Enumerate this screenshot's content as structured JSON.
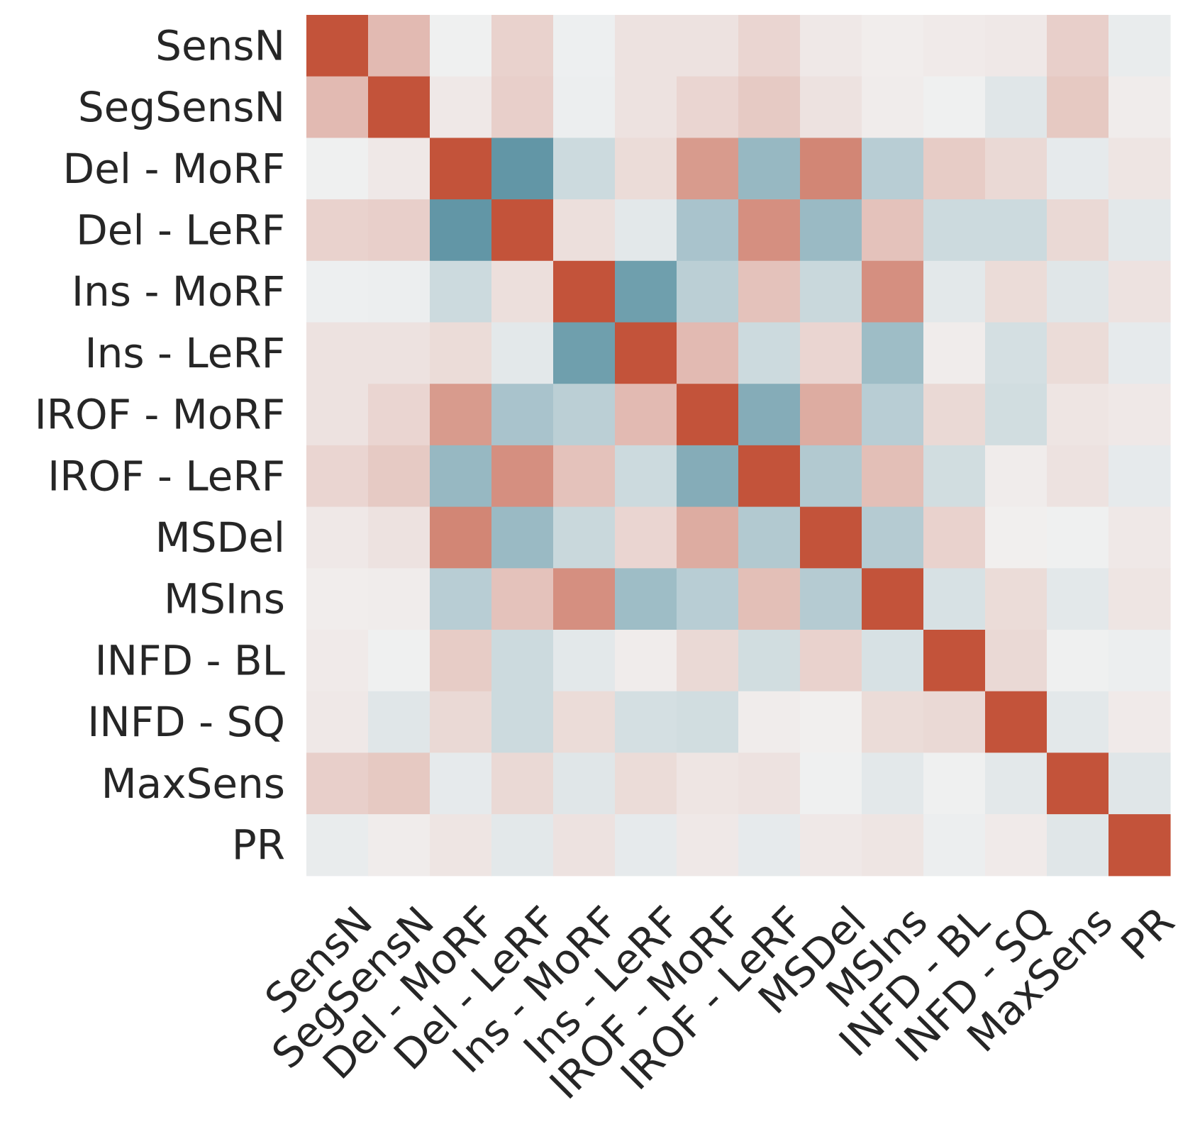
{
  "chart_data": {
    "type": "heatmap",
    "title": "",
    "xlabel": "",
    "ylabel": "",
    "labels": [
      "SensN",
      "SegSensN",
      "Del - MoRF",
      "Del - LeRF",
      "Ins - MoRF",
      "Ins - LeRF",
      "IROF - MoRF",
      "IROF - LeRF",
      "MSDel",
      "MSIns",
      "INFD - BL",
      "INFD - SQ",
      "MaxSens",
      "PR"
    ],
    "value_range": [
      -1,
      1
    ],
    "colormap": {
      "negative": "#5a91a2",
      "neutral": "#f2f2f2",
      "positive": "#c3533a"
    },
    "values": [
      [
        1.0,
        0.35,
        -0.02,
        0.2,
        -0.03,
        0.1,
        0.1,
        0.18,
        0.06,
        0.03,
        0.05,
        0.06,
        0.22,
        -0.06
      ],
      [
        0.35,
        1.0,
        0.06,
        0.22,
        -0.04,
        0.1,
        0.18,
        0.25,
        0.1,
        0.04,
        -0.02,
        -0.12,
        0.26,
        0.04
      ],
      [
        -0.02,
        0.06,
        1.0,
        -0.95,
        -0.25,
        0.14,
        0.55,
        -0.6,
        0.68,
        -0.38,
        0.24,
        0.16,
        -0.08,
        0.08
      ],
      [
        0.2,
        0.22,
        -0.95,
        1.0,
        0.12,
        -0.1,
        -0.48,
        0.62,
        -0.58,
        0.3,
        -0.25,
        -0.25,
        0.16,
        -0.1
      ],
      [
        -0.03,
        -0.04,
        -0.25,
        0.12,
        1.0,
        -0.86,
        -0.36,
        0.3,
        -0.27,
        0.62,
        -0.1,
        0.14,
        -0.12,
        0.1
      ],
      [
        0.1,
        0.1,
        0.14,
        -0.1,
        -0.86,
        1.0,
        0.35,
        -0.25,
        0.18,
        -0.55,
        0.04,
        -0.2,
        0.14,
        -0.08
      ],
      [
        0.1,
        0.18,
        0.55,
        -0.48,
        -0.36,
        0.35,
        1.0,
        -0.72,
        0.44,
        -0.38,
        0.16,
        -0.22,
        0.08,
        0.06
      ],
      [
        0.18,
        0.25,
        -0.6,
        0.62,
        0.3,
        -0.25,
        -0.72,
        1.0,
        -0.42,
        0.32,
        -0.22,
        0.04,
        0.1,
        -0.08
      ],
      [
        0.06,
        0.1,
        0.68,
        -0.58,
        -0.27,
        0.18,
        0.44,
        -0.42,
        1.0,
        -0.4,
        0.2,
        0.02,
        -0.02,
        0.06
      ],
      [
        0.03,
        0.04,
        -0.38,
        0.3,
        0.62,
        -0.55,
        -0.38,
        0.32,
        -0.4,
        1.0,
        -0.18,
        0.14,
        -0.1,
        0.08
      ],
      [
        0.05,
        -0.02,
        0.24,
        -0.25,
        -0.1,
        0.04,
        0.16,
        -0.22,
        0.2,
        -0.18,
        1.0,
        0.16,
        -0.02,
        -0.04
      ],
      [
        0.06,
        -0.12,
        0.16,
        -0.25,
        0.14,
        -0.2,
        -0.22,
        0.04,
        0.02,
        0.14,
        0.16,
        1.0,
        -0.1,
        0.05
      ],
      [
        0.22,
        0.26,
        -0.08,
        0.16,
        -0.12,
        0.14,
        0.08,
        0.1,
        -0.02,
        -0.1,
        -0.02,
        -0.1,
        1.0,
        -0.12
      ],
      [
        -0.06,
        0.04,
        0.08,
        -0.1,
        0.1,
        -0.08,
        0.06,
        -0.08,
        0.06,
        0.08,
        -0.04,
        0.05,
        -0.12,
        1.0
      ]
    ]
  }
}
